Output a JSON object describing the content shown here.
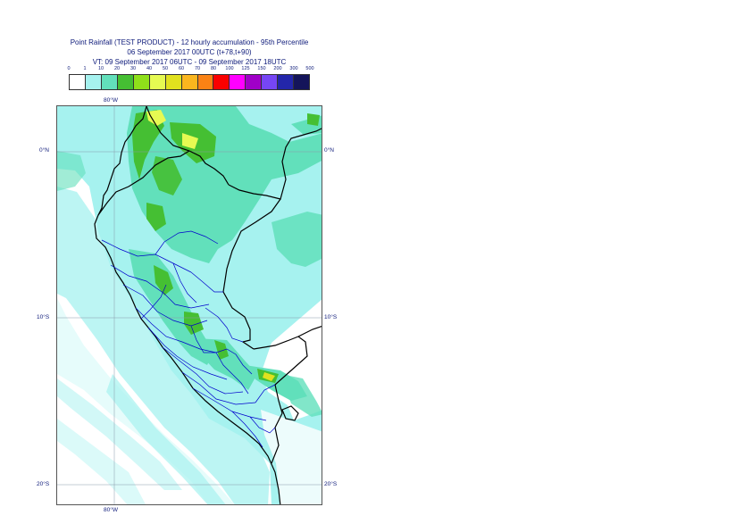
{
  "title": {
    "line1": "Point Rainfall (TEST PRODUCT) - 12 hourly accumulation - 95th Percentile",
    "line2": "06 September 2017 00UTC (t+78,t+90)",
    "line3": "VT: 09 September 2017 06UTC - 09 September 2017 18UTC"
  },
  "legend": {
    "thresholds": [
      "0",
      "1",
      "10",
      "20",
      "30",
      "40",
      "50",
      "60",
      "70",
      "80",
      "100",
      "125",
      "150",
      "200",
      "300",
      "500"
    ],
    "colors": [
      "#ffffff",
      "#a6f2ef",
      "#62e0bb",
      "#45bf33",
      "#8fe01a",
      "#e6fa52",
      "#e1e11e",
      "#fab61e",
      "#fa8214",
      "#fa0000",
      "#ff00ff",
      "#a000c8",
      "#7646f5",
      "#2326aa",
      "#14145a"
    ]
  },
  "map": {
    "longitude_labels": {
      "top": "80°W",
      "bottom": "80°W"
    },
    "latitude_labels": [
      {
        "label": "0°N",
        "right": "0°N"
      },
      {
        "label": "10°S",
        "right": "10°S"
      },
      {
        "label": "20°S",
        "right": "20°S"
      }
    ]
  }
}
